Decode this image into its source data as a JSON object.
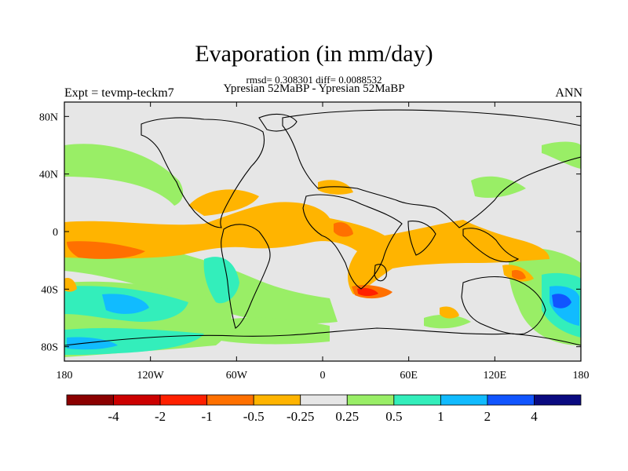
{
  "title": "Evaporation (in mm/day)",
  "stats_line": "rmsd= 0.308301 diff= 0.0088532",
  "comparison_line": "Ypresian  52MaBP - Ypresian  52MaBP",
  "experiment_label": "Expt = tevmp-teckm7",
  "season_label": "ANN",
  "map": {
    "type": "contour-map",
    "lon_range": [
      -180,
      180
    ],
    "lat_range": [
      -90,
      90
    ],
    "lon_ticks": [
      {
        "value": -180,
        "label": "180"
      },
      {
        "value": -120,
        "label": "120W"
      },
      {
        "value": -60,
        "label": "60W"
      },
      {
        "value": 0,
        "label": "0"
      },
      {
        "value": 60,
        "label": "60E"
      },
      {
        "value": 120,
        "label": "120E"
      },
      {
        "value": 180,
        "label": "180"
      }
    ],
    "lat_ticks": [
      {
        "value": 80,
        "label": "80N"
      },
      {
        "value": 40,
        "label": "40N"
      },
      {
        "value": 0,
        "label": "0"
      },
      {
        "value": -40,
        "label": "40S"
      },
      {
        "value": -80,
        "label": "80S"
      }
    ],
    "background_color": "#e6e6e6"
  },
  "colorbar": {
    "colors": [
      "#8b0000",
      "#cc0000",
      "#ff2000",
      "#ff7000",
      "#ffb400",
      "#e6e6e6",
      "#99ee66",
      "#33eebb",
      "#11bbff",
      "#1155ff",
      "#0a0a80"
    ],
    "labels": [
      "-4",
      "-2",
      "-1",
      "-0.5",
      "-0.25",
      "0.25",
      "0.5",
      "1",
      "2",
      "4"
    ]
  }
}
